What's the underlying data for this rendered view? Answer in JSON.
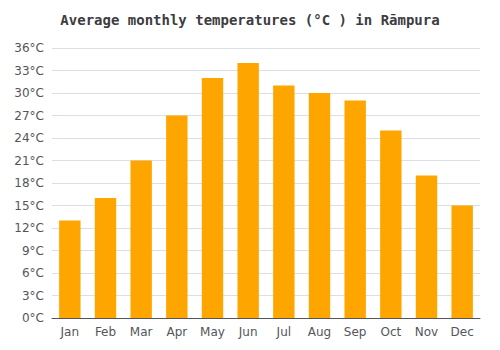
{
  "chart_data": {
    "type": "bar",
    "title": "Average monthly temperatures (°C ) in Rāmpura",
    "categories": [
      "Jan",
      "Feb",
      "Mar",
      "Apr",
      "May",
      "Jun",
      "Jul",
      "Aug",
      "Sep",
      "Oct",
      "Nov",
      "Dec"
    ],
    "values": [
      13,
      16,
      21,
      27,
      32,
      34,
      31,
      30,
      29,
      25,
      19,
      15
    ],
    "color": "#FFA500",
    "ylim": [
      0,
      36
    ],
    "yticks": [
      {
        "value": 0,
        "label": "0°C"
      },
      {
        "value": 3,
        "label": "3°C"
      },
      {
        "value": 6,
        "label": "6°C"
      },
      {
        "value": 9,
        "label": "9°C"
      },
      {
        "value": 12,
        "label": "12°C"
      },
      {
        "value": 15,
        "label": "15°C"
      },
      {
        "value": 18,
        "label": "18°C"
      },
      {
        "value": 21,
        "label": "21°C"
      },
      {
        "value": 24,
        "label": "24°C"
      },
      {
        "value": 27,
        "label": "27°C"
      },
      {
        "value": 30,
        "label": "30°C"
      },
      {
        "value": 33,
        "label": "33°C"
      },
      {
        "value": 36,
        "label": "36°C"
      }
    ],
    "grid": true
  }
}
